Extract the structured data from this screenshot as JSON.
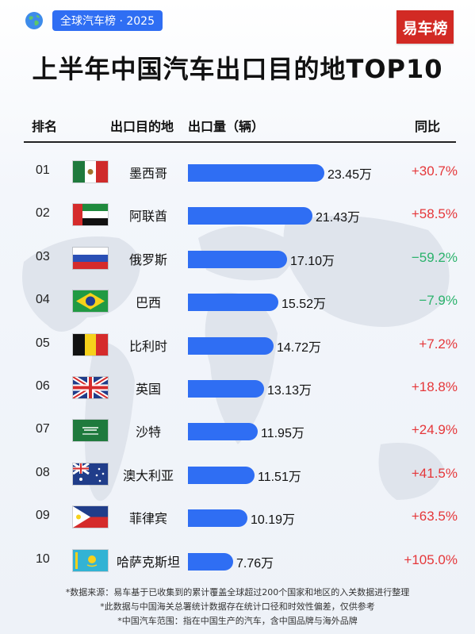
{
  "header": {
    "tag": "全球汽车榜 · 2025",
    "logo_text": "易车榜",
    "title": "上半年中国汽车出口目的地TOP10"
  },
  "columns": {
    "rank": "排名",
    "country": "出口目的地",
    "volume": "出口量（辆）",
    "yoy": "同比"
  },
  "chart_data": {
    "type": "bar",
    "orientation": "horizontal",
    "title": "上半年中国汽车出口目的地TOP10",
    "unit": "万",
    "categories": [
      "墨西哥",
      "阿联酋",
      "俄罗斯",
      "巴西",
      "比利时",
      "英国",
      "沙特",
      "澳大利亚",
      "菲律宾",
      "哈萨克斯坦"
    ],
    "values": [
      23.45,
      21.43,
      17.1,
      15.52,
      14.72,
      13.13,
      11.95,
      11.51,
      10.19,
      7.76
    ],
    "value_labels": [
      "23.45万",
      "21.43万",
      "17.10万",
      "15.52万",
      "14.72万",
      "13.13万",
      "11.95万",
      "11.51万",
      "10.19万",
      "7.76万"
    ],
    "ranks": [
      "01",
      "02",
      "03",
      "04",
      "05",
      "06",
      "07",
      "08",
      "09",
      "10"
    ],
    "yoy": [
      "+30.7%",
      "+58.5%",
      "−59.2%",
      "−7.9%",
      "+7.2%",
      "+18.8%",
      "+24.9%",
      "+41.5%",
      "+63.5%",
      "+105.0%"
    ],
    "yoy_direction": [
      "up",
      "up",
      "down",
      "down",
      "up",
      "up",
      "up",
      "up",
      "up",
      "up"
    ],
    "flags": [
      "mexico-flag",
      "uae-flag",
      "russia-flag",
      "brazil-flag",
      "belgium-flag",
      "uk-flag",
      "saudi-flag",
      "australia-flag",
      "philippines-flag",
      "kazakhstan-flag"
    ],
    "colors": {
      "bar": "#2f6ef3",
      "up": "#e5373a",
      "down": "#2ab26b"
    }
  },
  "notes": [
    "*数据来源：易车基于已收集到的累计覆盖全球超过200个国家和地区的入关数据进行整理",
    "*此数据与中国海关总署统计数据存在统计口径和时效性偏差，仅供参考",
    "*中国汽车范围：指在中国生产的汽车，含中国品牌与海外品牌"
  ]
}
